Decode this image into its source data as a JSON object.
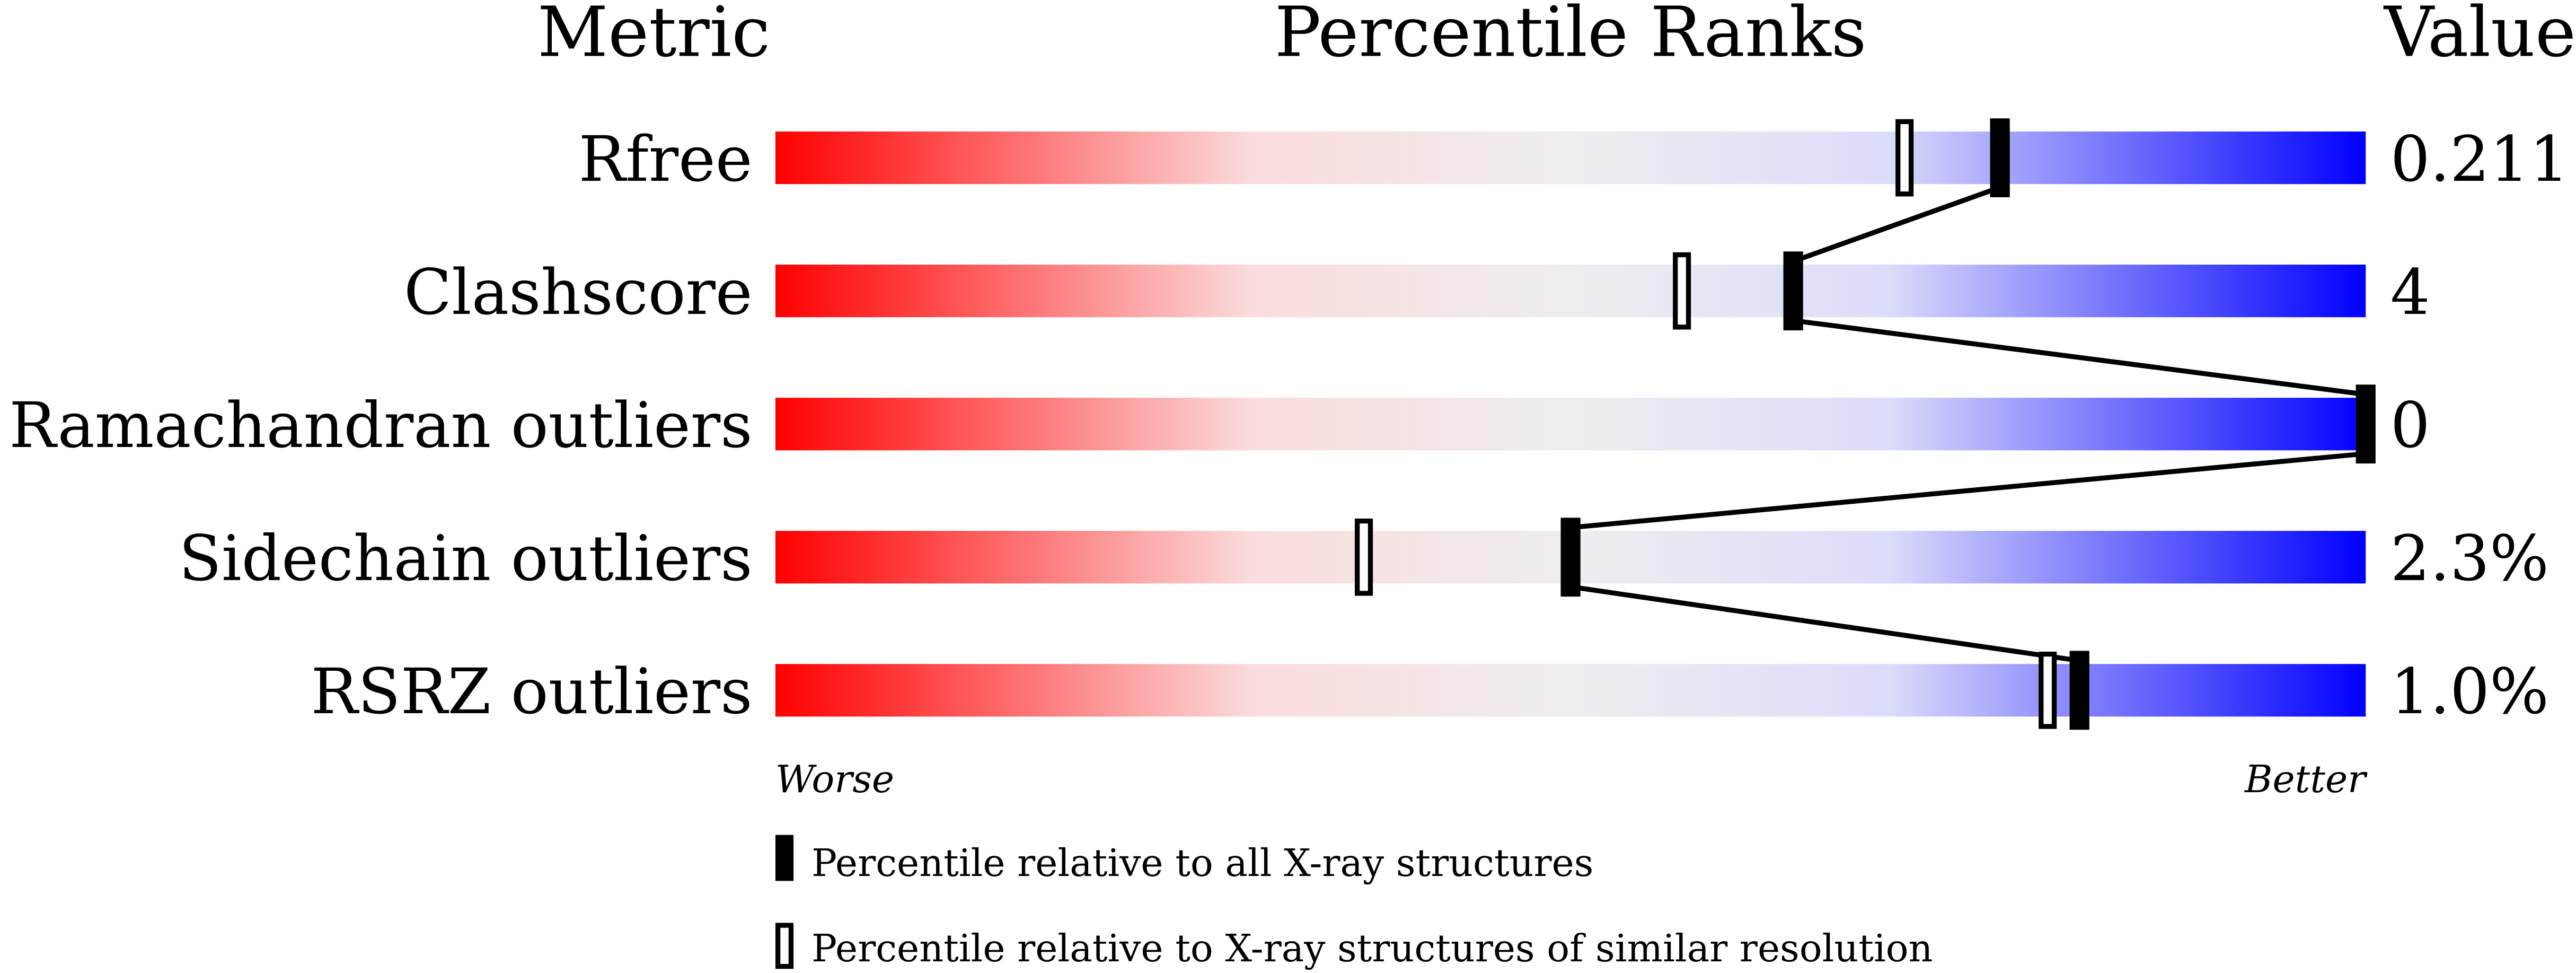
{
  "chart_data": {
    "type": "percentile-bar",
    "headers": {
      "metric": "Metric",
      "percentile": "Percentile Ranks",
      "value": "Value"
    },
    "xlim": [
      0,
      100
    ],
    "rows": [
      {
        "metric": "Rfree",
        "value": "0.211",
        "percentile_all": 77,
        "percentile_similar": 71
      },
      {
        "metric": "Clashscore",
        "value": "4",
        "percentile_all": 64,
        "percentile_similar": 57
      },
      {
        "metric": "Ramachandran outliers",
        "value": "0",
        "percentile_all": 100,
        "percentile_similar": 100
      },
      {
        "metric": "Sidechain outliers",
        "value": "2.3%",
        "percentile_all": 50,
        "percentile_similar": 37
      },
      {
        "metric": "RSRZ outliers",
        "value": "1.0%",
        "percentile_all": 82,
        "percentile_similar": 80
      }
    ],
    "axis_labels": {
      "left": "Worse",
      "right": "Better"
    },
    "legend": {
      "filled": "Percentile relative to all X-ray structures",
      "open": "Percentile relative to X-ray structures of similar resolution"
    },
    "gradient_colors": [
      "#ff0000",
      "#fbdcdc",
      "#eeeeee",
      "#dcdcfb",
      "#0000ff"
    ]
  }
}
